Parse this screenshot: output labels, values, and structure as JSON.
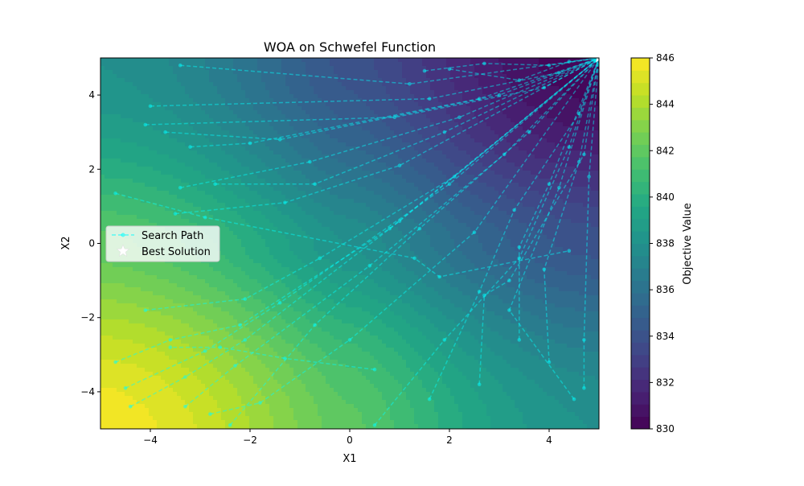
{
  "chart_data": {
    "type": "contour",
    "title": "WOA on Schwefel Function",
    "xlabel": "X1",
    "ylabel": "X2",
    "xlim": [
      -5,
      5
    ],
    "ylim": [
      -5,
      5
    ],
    "x_ticks": [
      -4,
      -2,
      0,
      2,
      4
    ],
    "y_ticks": [
      -4,
      -2,
      0,
      2,
      4
    ],
    "x_tick_labels": [
      "−4",
      "−2",
      "0",
      "2",
      "4"
    ],
    "y_tick_labels": [
      "−4",
      "−2",
      "0",
      "2",
      "4"
    ],
    "colorbar": {
      "label": "Objective Value",
      "range": [
        830,
        846
      ],
      "ticks": [
        830,
        832,
        834,
        836,
        838,
        840,
        842,
        844,
        846
      ],
      "tick_labels": [
        "830",
        "832",
        "834",
        "836",
        "838",
        "840",
        "842",
        "844",
        "846"
      ],
      "colormap": "viridis"
    },
    "legend": {
      "placement": "center-left",
      "entries": [
        {
          "label": "Search Path",
          "style": "dashed-line-with-dots",
          "color": "#00ffff"
        },
        {
          "label": "Best Solution",
          "style": "star-marker",
          "color": "#ffffff"
        }
      ]
    },
    "best_solution": {
      "x": 5.0,
      "y": 5.0
    },
    "series": [
      {
        "name": "Search Path",
        "color": "#00ffff",
        "paths": [
          [
            [
              -3.4,
              4.8
            ],
            [
              1.2,
              4.3
            ],
            [
              5.0,
              5.0
            ]
          ],
          [
            [
              -4.0,
              3.7
            ],
            [
              1.6,
              3.9
            ],
            [
              4.2,
              4.6
            ],
            [
              5.0,
              5.0
            ]
          ],
          [
            [
              -4.1,
              3.2
            ],
            [
              0.9,
              3.4
            ],
            [
              3.9,
              4.2
            ],
            [
              5.0,
              5.0
            ]
          ],
          [
            [
              -3.7,
              3.0
            ],
            [
              -1.4,
              2.8
            ],
            [
              3.0,
              4.0
            ],
            [
              5.0,
              5.0
            ]
          ],
          [
            [
              -3.2,
              2.6
            ],
            [
              -2.0,
              2.7
            ],
            [
              2.6,
              3.9
            ],
            [
              5.0,
              5.0
            ]
          ],
          [
            [
              -3.4,
              1.5
            ],
            [
              -0.8,
              2.2
            ],
            [
              2.2,
              3.4
            ],
            [
              5.0,
              5.0
            ]
          ],
          [
            [
              -2.7,
              1.6
            ],
            [
              -0.7,
              1.6
            ],
            [
              1.9,
              3.0
            ],
            [
              5.0,
              5.0
            ]
          ],
          [
            [
              -4.7,
              1.35
            ],
            [
              -2.9,
              0.7
            ],
            [
              1.3,
              -0.4
            ],
            [
              1.8,
              -0.9
            ],
            [
              4.4,
              -0.2
            ]
          ],
          [
            [
              -3.5,
              0.8
            ],
            [
              -1.3,
              1.1
            ],
            [
              1.0,
              2.1
            ],
            [
              5.0,
              5.0
            ]
          ],
          [
            [
              -4.7,
              -3.2
            ],
            [
              -3.6,
              -2.6
            ],
            [
              -2.2,
              -2.2
            ],
            [
              0.8,
              0.4
            ],
            [
              5.0,
              5.0
            ]
          ],
          [
            [
              -4.5,
              -3.9
            ],
            [
              -2.9,
              -2.9
            ],
            [
              -1.4,
              -1.6
            ],
            [
              2.0,
              1.6
            ],
            [
              5.0,
              5.0
            ]
          ],
          [
            [
              -4.4,
              -4.4
            ],
            [
              -3.3,
              -3.6
            ],
            [
              -2.1,
              -2.6
            ],
            [
              1.0,
              0.6
            ],
            [
              5.0,
              5.0
            ]
          ],
          [
            [
              -3.3,
              -4.4
            ],
            [
              -2.3,
              -3.3
            ],
            [
              0.4,
              -0.6
            ],
            [
              3.1,
              2.4
            ],
            [
              5.0,
              5.0
            ]
          ],
          [
            [
              -2.8,
              -4.6
            ],
            [
              -1.8,
              -4.3
            ],
            [
              0.0,
              -2.6
            ],
            [
              2.5,
              0.3
            ],
            [
              5.0,
              5.0
            ]
          ],
          [
            [
              -2.4,
              -4.9
            ],
            [
              -0.7,
              -2.2
            ],
            [
              1.4,
              0.4
            ],
            [
              3.6,
              3.0
            ],
            [
              5.0,
              5.0
            ]
          ],
          [
            [
              0.5,
              -4.9
            ],
            [
              1.9,
              -2.6
            ],
            [
              3.4,
              -0.4
            ],
            [
              4.4,
              2.6
            ],
            [
              5.0,
              5.0
            ]
          ],
          [
            [
              1.6,
              -4.2
            ],
            [
              2.6,
              -1.3
            ],
            [
              3.3,
              0.9
            ],
            [
              4.6,
              3.5
            ],
            [
              5.0,
              5.0
            ]
          ],
          [
            [
              2.6,
              -3.8
            ],
            [
              2.7,
              -1.4
            ],
            [
              3.2,
              -1.0
            ],
            [
              4.7,
              2.4
            ],
            [
              5.0,
              5.0
            ]
          ],
          [
            [
              3.4,
              -2.6
            ],
            [
              3.4,
              -0.1
            ],
            [
              4.0,
              1.6
            ],
            [
              5.0,
              5.0
            ]
          ],
          [
            [
              4.0,
              -3.2
            ],
            [
              3.9,
              -0.7
            ],
            [
              4.6,
              2.2
            ],
            [
              5.0,
              5.0
            ]
          ],
          [
            [
              4.7,
              -3.9
            ],
            [
              4.7,
              -2.6
            ],
            [
              4.8,
              1.8
            ],
            [
              5.0,
              5.0
            ]
          ],
          [
            [
              4.5,
              -4.2
            ],
            [
              3.2,
              -1.8
            ],
            [
              4.2,
              1.5
            ],
            [
              5.0,
              5.0
            ]
          ],
          [
            [
              0.5,
              -3.4
            ],
            [
              -1.3,
              -3.1
            ],
            [
              -2.6,
              -2.8
            ],
            [
              -3.6,
              -2.8
            ]
          ],
          [
            [
              -4.1,
              -1.8
            ],
            [
              -2.1,
              -1.5
            ],
            [
              -0.6,
              -0.4
            ],
            [
              2.1,
              1.8
            ],
            [
              5.0,
              5.0
            ]
          ],
          [
            [
              2.0,
              4.7
            ],
            [
              3.4,
              4.4
            ],
            [
              4.4,
              4.9
            ],
            [
              5.0,
              5.0
            ]
          ],
          [
            [
              1.5,
              4.65
            ],
            [
              2.7,
              4.85
            ],
            [
              4.0,
              4.8
            ],
            [
              5.0,
              5.0
            ]
          ]
        ]
      }
    ]
  }
}
